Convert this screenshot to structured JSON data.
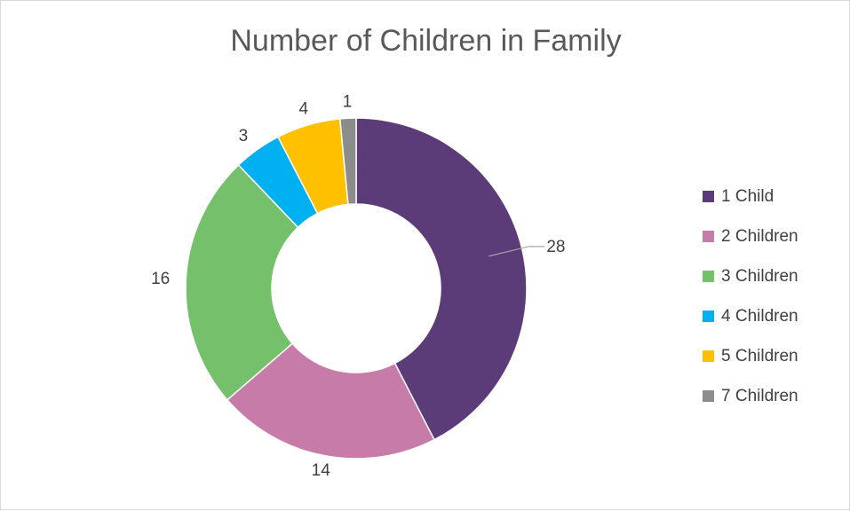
{
  "chart_data": {
    "type": "pie",
    "variant": "donut",
    "title": "Number of Children in Family",
    "categories": [
      "1 Child",
      "2 Children",
      "3 Children",
      "4 Children",
      "5 Children",
      "7 Children"
    ],
    "values": [
      28,
      14,
      16,
      3,
      4,
      1
    ],
    "colors": [
      "#5b3b78",
      "#c67ba9",
      "#74c06b",
      "#00b0f0",
      "#ffc000",
      "#8c8c8c"
    ],
    "legend_position": "right",
    "data_labels": true
  }
}
